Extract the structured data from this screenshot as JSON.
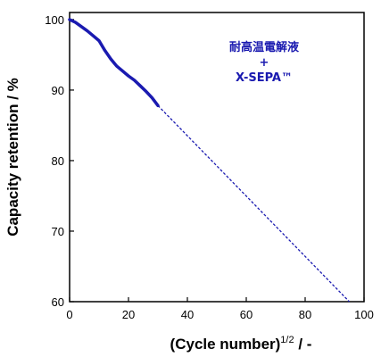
{
  "chart_data": {
    "type": "line",
    "title": "",
    "xlabel": "(Cycle number)",
    "xlabel_sup": "1/2",
    "xlabel_suffix": " / -",
    "ylabel": "Capacity retention / %",
    "xlim": [
      0,
      100
    ],
    "ylim": [
      60,
      101
    ],
    "x_ticks": [
      0,
      20,
      40,
      60,
      80,
      100
    ],
    "y_ticks": [
      60,
      70,
      80,
      90,
      100
    ],
    "grid": false,
    "legend": "none",
    "annotation": {
      "line1": "耐高温電解液",
      "line2": "+",
      "line3": "X-SEPA™"
    },
    "series": [
      {
        "style": "solid",
        "color": "#1a1ab0",
        "x": [
          0,
          2,
          4,
          6,
          8,
          10,
          12,
          14,
          16,
          18,
          20,
          22,
          24,
          26,
          28,
          30
        ],
        "y": [
          100.0,
          99.6,
          99.0,
          98.4,
          97.7,
          97.0,
          95.6,
          94.4,
          93.4,
          92.7,
          92.0,
          91.4,
          90.6,
          89.8,
          88.9,
          87.8
        ]
      },
      {
        "style": "dashed",
        "color": "#1a1ab0",
        "x": [
          30,
          95
        ],
        "y": [
          87.8,
          60.0
        ]
      }
    ]
  }
}
